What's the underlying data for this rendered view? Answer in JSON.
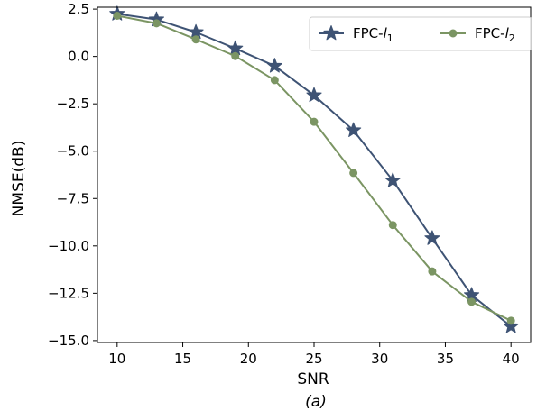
{
  "chart_data": {
    "type": "line",
    "title": "",
    "xlabel": "SNR",
    "ylabel": "NMSE(dB)",
    "caption": "(a)",
    "xlim": [
      8.5,
      41.5
    ],
    "ylim": [
      -15.1,
      2.6
    ],
    "xticks": [
      10,
      15,
      20,
      25,
      30,
      35,
      40
    ],
    "yticks": [
      2.5,
      0.0,
      -2.5,
      -5.0,
      -7.5,
      -10.0,
      -12.5,
      -15.0
    ],
    "xtick_labels": [
      "10",
      "15",
      "20",
      "25",
      "30",
      "35",
      "40"
    ],
    "ytick_labels": [
      "2.5",
      "0.0",
      "−2.5",
      "−5.0",
      "−7.5",
      "−10.0",
      "−12.5",
      "−15.0"
    ],
    "grid": false,
    "legend_position": "top-right",
    "x": [
      10,
      13,
      16,
      19,
      22,
      25,
      28,
      31,
      34,
      37,
      40
    ],
    "series": [
      {
        "name": "FPC-l1",
        "label_base": "FPC-",
        "label_italic": "l",
        "label_sub": "1",
        "color": "#3e5374",
        "marker": "star",
        "values": [
          2.25,
          1.95,
          1.28,
          0.42,
          -0.5,
          -2.05,
          -3.9,
          -6.55,
          -9.6,
          -12.6,
          -14.25
        ]
      },
      {
        "name": "FPC-l2",
        "label_base": "FPC-",
        "label_italic": "l",
        "label_sub": "2",
        "color": "#7b9563",
        "marker": "circle",
        "values": [
          2.15,
          1.75,
          0.9,
          0.02,
          -1.25,
          -3.45,
          -6.15,
          -8.9,
          -11.35,
          -12.95,
          -13.95
        ]
      }
    ]
  }
}
